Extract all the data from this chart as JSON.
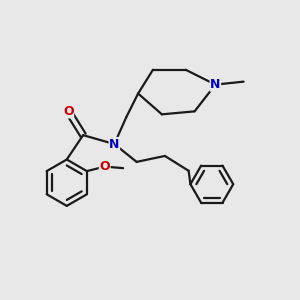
{
  "background_color": "#e8e8e8",
  "bond_color": "#1a1a1a",
  "N_color": "#0000cc",
  "O_color": "#cc0000",
  "line_width": 1.6,
  "font_size_atom": 9,
  "figsize": [
    3.0,
    3.0
  ],
  "dpi": 100,
  "xlim": [
    0,
    10
  ],
  "ylim": [
    0,
    10
  ]
}
